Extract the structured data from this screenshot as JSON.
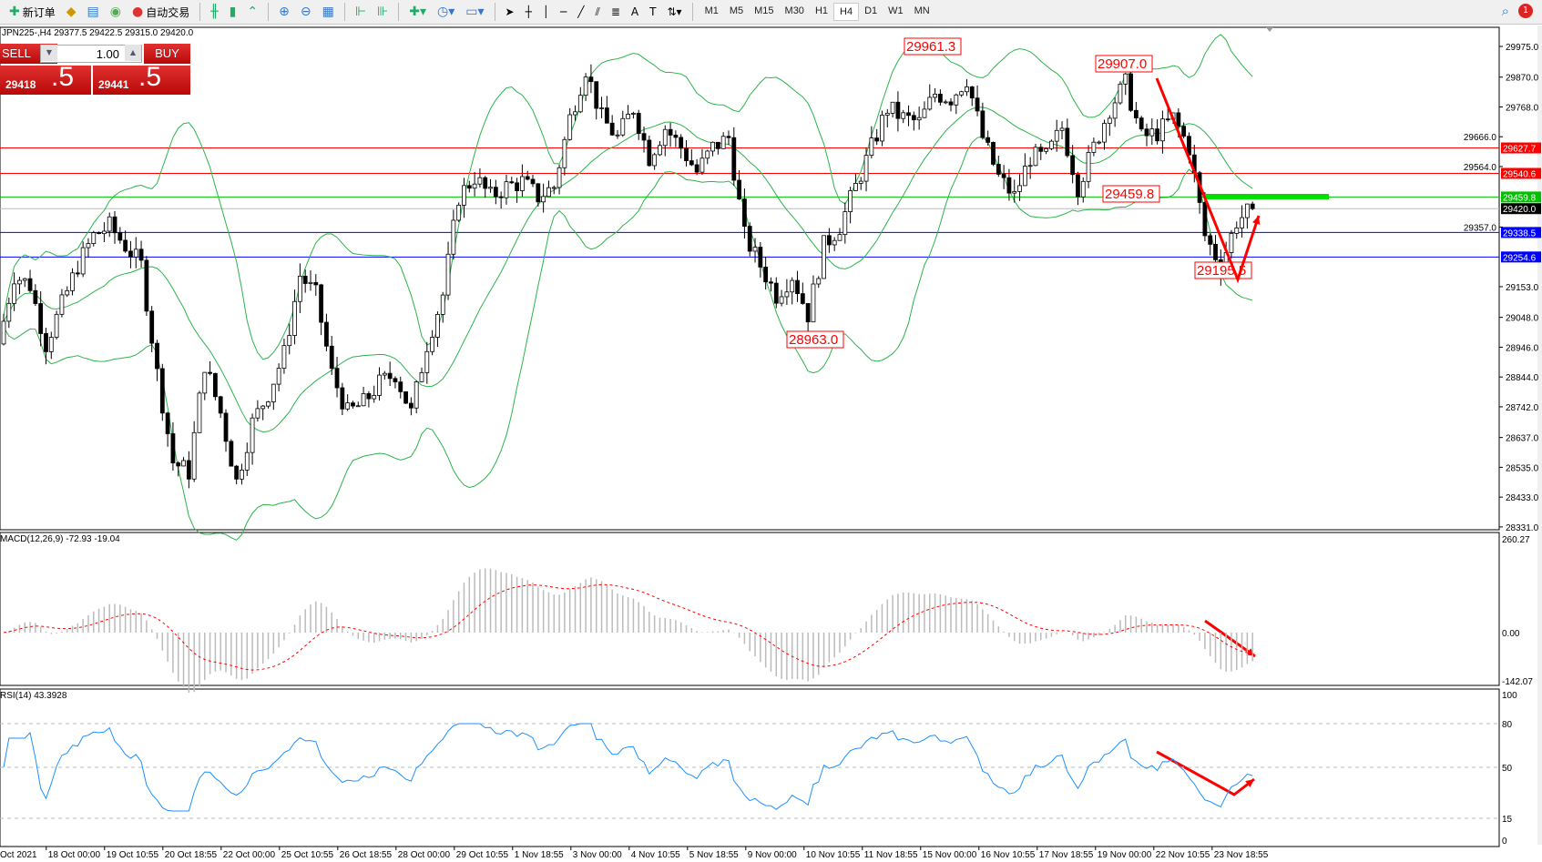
{
  "toolbar": {
    "new_order": "新订单",
    "auto_trading": "自动交易",
    "timeframes": [
      "M1",
      "M5",
      "M15",
      "M30",
      "H1",
      "H4",
      "D1",
      "W1",
      "MN"
    ],
    "active_timeframe": "H4",
    "notification_count": "1"
  },
  "chart": {
    "title": "JPN225-,H4  29377.5 29422.5 29315.0 29420.0"
  },
  "trade_panel": {
    "sell_label": "SELL",
    "buy_label": "BUY",
    "lot": "1.00",
    "sell_price_small": "29418",
    "sell_price_big": ".5",
    "buy_price_small": "29441",
    "buy_price_big": ".5"
  },
  "chart_data": {
    "type": "candlestick",
    "symbol": "JPN225-",
    "timeframe": "H4",
    "closes": [
      28957,
      29192,
      29158,
      28957,
      29091,
      29226,
      29327,
      29360,
      29293,
      29226,
      28856,
      28553,
      28519,
      28889,
      28721,
      28486,
      28687,
      28788,
      28923,
      29192,
      29125,
      28856,
      28721,
      28755,
      28822,
      28856,
      28721,
      28957,
      29125,
      29461,
      29528,
      29461,
      29495,
      29512,
      29461,
      29495,
      29730,
      29899,
      29730,
      29663,
      29764,
      29596,
      29697,
      29629,
      29545,
      29629,
      29663,
      29327,
      29226,
      29125,
      29192,
      29058,
      29293,
      29360,
      29495,
      29629,
      29764,
      29730,
      29714,
      29814,
      29798,
      29865,
      29663,
      29528,
      29461,
      29596,
      29596,
      29697,
      29495,
      29629,
      29764,
      29848,
      29663,
      29680,
      29730,
      29629,
      29327,
      29226,
      29377,
      29420
    ],
    "price_axis": [
      "29975.0",
      "29870.0",
      "29768.0",
      "29666.0",
      "29564.0",
      "29357.0",
      "29153.0",
      "29048.0",
      "28946.0",
      "28844.0",
      "28742.0",
      "28637.0",
      "28535.0",
      "28433.0",
      "28331.0"
    ],
    "price_range": [
      28331,
      30040
    ],
    "lines": [
      {
        "value": "29627.7",
        "color": "#ff0000"
      },
      {
        "value": "29540.6",
        "color": "#ff0000"
      },
      {
        "value": "29459.8",
        "color": "#00c000"
      },
      {
        "value": "29420.0",
        "color": "#000000"
      },
      {
        "value": "29338.5",
        "color": "#0000ff"
      },
      {
        "value": "29254.6",
        "color": "#0000ff"
      }
    ],
    "annotations": [
      "29961.3",
      "29907.0",
      "29459.8",
      "29195.5",
      "28963.0"
    ],
    "time_axis": [
      "Oct 2021",
      "18 Oct 00:00",
      "19 Oct 10:55",
      "20 Oct 18:55",
      "22 Oct 00:00",
      "25 Oct 10:55",
      "26 Oct 18:55",
      "28 Oct 00:00",
      "29 Oct 10:55",
      "1 Nov 18:55",
      "3 Nov 00:00",
      "4 Nov 10:55",
      "5 Nov 18:55",
      "9 Nov 00:00",
      "10 Nov 10:55",
      "11 Nov 18:55",
      "15 Nov 00:00",
      "16 Nov 10:55",
      "17 Nov 18:55",
      "19 Nov 00:00",
      "22 Nov 10:55",
      "23 Nov 18:55"
    ],
    "indicators": {
      "bollinger_color": "#2db34a",
      "macd": {
        "title": "MACD(12,26,9) -72.93 -19.04",
        "axis": [
          "260.27",
          "0.00",
          "-142.07"
        ],
        "range": [
          -142.07,
          260.27
        ]
      },
      "rsi": {
        "title": "RSI(14) 43.3928",
        "axis": [
          "100",
          "80",
          "50",
          "15",
          "0"
        ],
        "levels": [
          80,
          50,
          15
        ]
      }
    }
  }
}
